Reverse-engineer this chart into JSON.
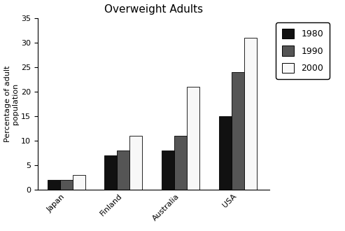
{
  "title": "Overweight Adults",
  "ylabel": "Percentage of adult\npopulation",
  "categories": [
    "Japan",
    "Finland",
    "Australia",
    "USA"
  ],
  "years": [
    "1980",
    "1990",
    "2000"
  ],
  "values": {
    "1980": [
      2,
      7,
      8,
      15
    ],
    "1990": [
      2,
      8,
      11,
      24
    ],
    "2000": [
      3,
      11,
      21,
      31
    ]
  },
  "bar_colors": {
    "1980": "#111111",
    "1990": "#555555",
    "2000": "#f8f8f8"
  },
  "bar_edgecolor": "#000000",
  "ylim": [
    0,
    35
  ],
  "yticks": [
    0,
    5,
    10,
    15,
    20,
    25,
    30,
    35
  ],
  "background_color": "#ffffff",
  "fig_background": "#ffffff",
  "border_color": "#aaaaaa",
  "bar_width": 0.22,
  "title_fontsize": 11,
  "label_fontsize": 8,
  "tick_fontsize": 8,
  "legend_fontsize": 9
}
